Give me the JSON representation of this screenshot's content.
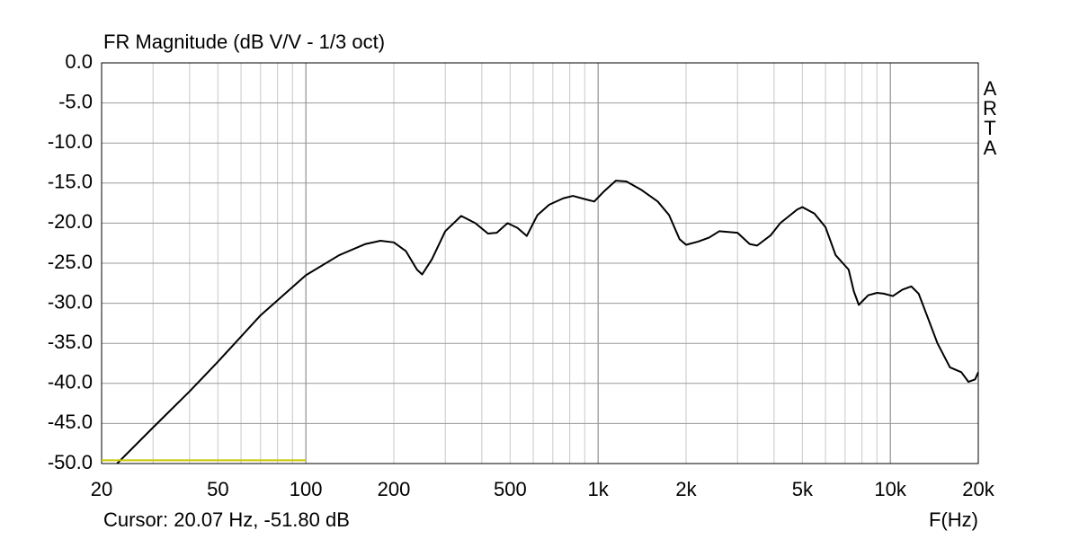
{
  "chart_data": {
    "type": "line",
    "title": "FR Magnitude (dB V/V - 1/3 oct)",
    "side_label": "ARTA",
    "cursor_text": "Cursor: 20.07 Hz, -51.80 dB",
    "x_label": "F(Hz)",
    "log_x": true,
    "grid": true,
    "xlim": [
      20,
      20000
    ],
    "ylim": [
      -50,
      0
    ],
    "xticks": [
      20,
      50,
      100,
      200,
      500,
      {
        "value": 1000,
        "label": "1k"
      },
      {
        "value": 2000,
        "label": "2k"
      },
      {
        "value": 5000,
        "label": "5k"
      },
      {
        "value": 10000,
        "label": "10k"
      },
      {
        "value": 20000,
        "label": "20k"
      }
    ],
    "xgrid": [
      20,
      30,
      40,
      50,
      60,
      70,
      80,
      90,
      100,
      200,
      300,
      400,
      500,
      600,
      700,
      800,
      900,
      1000,
      2000,
      3000,
      4000,
      5000,
      6000,
      7000,
      8000,
      9000,
      10000,
      20000
    ],
    "yticks": [
      {
        "value": 0,
        "label": "0.0"
      },
      {
        "value": -5,
        "label": "-5.0"
      },
      {
        "value": -10,
        "label": "-10.0"
      },
      {
        "value": -15,
        "label": "-15.0"
      },
      {
        "value": -20,
        "label": "-20.0"
      },
      {
        "value": -25,
        "label": "-25.0"
      },
      {
        "value": -30,
        "label": "-30.0"
      },
      {
        "value": -35,
        "label": "-35.0"
      },
      {
        "value": -40,
        "label": "-40.0"
      },
      {
        "value": -45,
        "label": "-45.0"
      },
      {
        "value": -50,
        "label": "-50.0"
      }
    ],
    "series": [
      {
        "color": "#000000",
        "x": [
          22.6,
          30,
          40,
          50,
          70,
          100,
          130,
          160,
          180,
          200,
          220,
          240,
          250,
          270,
          300,
          340,
          380,
          420,
          450,
          490,
          530,
          570,
          620,
          680,
          760,
          820,
          900,
          970,
          1050,
          1150,
          1250,
          1400,
          1600,
          1750,
          1900,
          2000,
          2200,
          2400,
          2600,
          3000,
          3300,
          3500,
          3900,
          4200,
          4800,
          5000,
          5500,
          6000,
          6500,
          7200,
          7500,
          7800,
          8400,
          9000,
          9500,
          10200,
          11000,
          11800,
          12500,
          13500,
          14500,
          16000,
          17500,
          18500,
          19500,
          20000
        ],
        "values": [
          -50,
          -45.5,
          -41,
          -37.3,
          -31.5,
          -26.5,
          -24,
          -22.6,
          -22.2,
          -22.4,
          -23.5,
          -25.8,
          -26.4,
          -24.5,
          -21,
          -19.1,
          -20,
          -21.3,
          -21.2,
          -20,
          -20.6,
          -21.6,
          -19,
          -17.7,
          -16.9,
          -16.6,
          -17,
          -17.3,
          -16,
          -14.7,
          -14.8,
          -15.8,
          -17.3,
          -19,
          -22,
          -22.7,
          -22.3,
          -21.8,
          -21,
          -21.2,
          -22.6,
          -22.8,
          -21.5,
          -20,
          -18.3,
          -18,
          -18.8,
          -20.5,
          -24,
          -25.8,
          -28.5,
          -30.2,
          -29,
          -28.7,
          -28.8,
          -29.1,
          -28.3,
          -27.9,
          -28.8,
          -32,
          -35,
          -38,
          -38.6,
          -39.8,
          -39.5,
          -38.6
        ]
      },
      {
        "color": "#c8c800",
        "x": [
          20,
          100
        ],
        "values": [
          -49.6,
          -49.6
        ]
      }
    ]
  }
}
